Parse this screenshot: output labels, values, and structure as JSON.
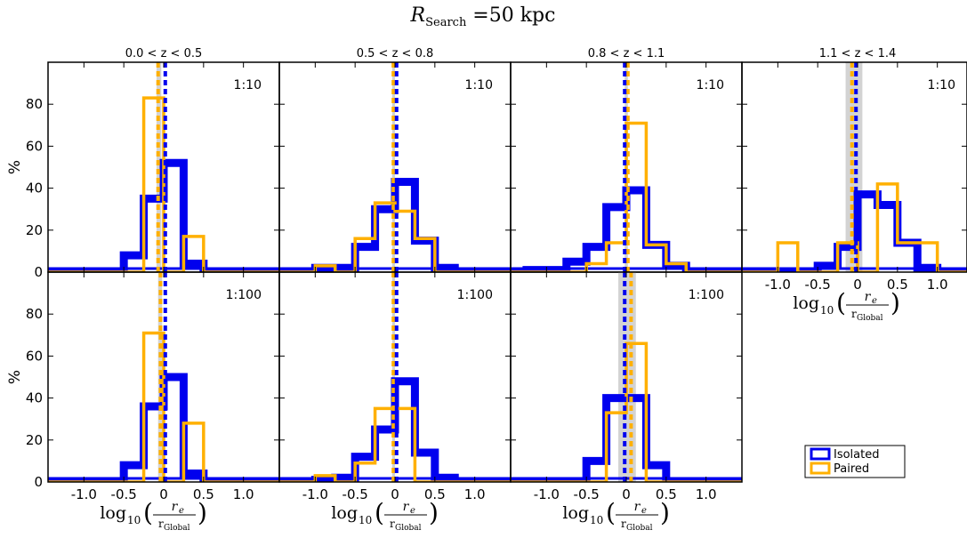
{
  "figure": {
    "title_main": "R",
    "title_sub": "Search",
    "title_rest": " =50 kpc",
    "xlabel_log": "log",
    "xlabel_base": "10",
    "xlabel_num": "r",
    "xlabel_num_sub": "e",
    "xlabel_den": "r",
    "xlabel_den_sub": "Global",
    "ylabel": "%"
  },
  "legend": {
    "items": [
      {
        "label": "Isolated",
        "color": "#0000ee"
      },
      {
        "label": "Paired",
        "color": "#ffb000"
      }
    ],
    "placement": "bottom-right"
  },
  "colors": {
    "isolated": "#0000ee",
    "paired": "#ffb000",
    "band": "#d3d3d3"
  },
  "chart_data": {
    "type": "histogram-grid",
    "bin_edges": [
      -1.75,
      -1.5,
      -1.25,
      -1.0,
      -0.75,
      -0.5,
      -0.25,
      0.0,
      0.25,
      0.5,
      0.75,
      1.0,
      1.25,
      1.5,
      1.75
    ],
    "xlim": [
      -1.45,
      1.45
    ],
    "ylim": [
      0,
      100
    ],
    "xticks": [
      -1.0,
      -0.5,
      0,
      0.5,
      1.0
    ],
    "xtick_labels": [
      "-1.0",
      "-0.5",
      "0",
      "0.5",
      "1.0"
    ],
    "yticks": [
      0,
      20,
      40,
      60,
      80
    ],
    "ytick_labels": [
      "0",
      "20",
      "40",
      "60",
      "80"
    ],
    "panels": [
      {
        "title": "0.0 < z < 0.5",
        "ratio": "1:10",
        "row": 0,
        "col": 0,
        "isolated": [
          0,
          0,
          0,
          0,
          0,
          8,
          35,
          52,
          4,
          0,
          0,
          0,
          0,
          0
        ],
        "paired": [
          0,
          0,
          0,
          0,
          0,
          0,
          83,
          0,
          17,
          0,
          0,
          0,
          0,
          0
        ],
        "isolated_line": 0.02,
        "paired_line": -0.07,
        "band": [
          -0.09,
          -0.03
        ]
      },
      {
        "title": "0.5 < z < 0.8",
        "ratio": "1:10",
        "row": 0,
        "col": 1,
        "isolated": [
          0,
          0,
          0,
          2,
          2,
          12,
          30,
          43,
          15,
          2,
          0,
          0,
          0,
          0
        ],
        "paired": [
          0,
          0,
          0,
          3,
          0,
          16,
          33,
          29,
          16,
          0,
          0,
          0,
          0,
          0
        ],
        "isolated_line": 0.02,
        "paired_line": -0.02,
        "band": [
          -0.035,
          0.0
        ]
      },
      {
        "title": "0.8 < z < 1.1",
        "ratio": "1:10",
        "row": 0,
        "col": 2,
        "isolated": [
          0,
          0,
          1,
          1,
          5,
          12,
          31,
          39,
          13,
          3,
          0,
          0,
          0,
          0
        ],
        "paired": [
          0,
          0,
          0,
          0,
          0,
          4,
          14,
          71,
          13,
          4,
          0,
          0,
          0,
          0
        ],
        "isolated_line": -0.02,
        "paired_line": 0.02,
        "band": [
          -0.02,
          0.02
        ]
      },
      {
        "title": "1.1 < z < 1.4",
        "ratio": "1:10",
        "row": 0,
        "col": 3,
        "isolated": [
          0,
          0,
          0,
          0,
          0,
          3,
          12,
          37,
          32,
          14,
          2,
          0,
          0,
          0
        ],
        "paired": [
          0,
          0,
          0,
          14,
          0,
          0,
          14,
          0,
          42,
          14,
          14,
          0,
          0,
          0
        ],
        "isolated_line": -0.02,
        "paired_line": -0.07,
        "band": [
          -0.15,
          0.06
        ]
      },
      {
        "title": "",
        "ratio": "1:100",
        "row": 1,
        "col": 0,
        "isolated": [
          0,
          0,
          0,
          0,
          0,
          8,
          36,
          50,
          4,
          0,
          0,
          0,
          0,
          0
        ],
        "paired": [
          0,
          0,
          0,
          0,
          0,
          0,
          71,
          0,
          28,
          0,
          0,
          0,
          0,
          0
        ],
        "isolated_line": 0.02,
        "paired_line": -0.04,
        "band": [
          -0.07,
          -0.02
        ]
      },
      {
        "title": "",
        "ratio": "1:100",
        "row": 1,
        "col": 1,
        "isolated": [
          0,
          0,
          0,
          1,
          2,
          12,
          25,
          48,
          14,
          2,
          0,
          0,
          0,
          0
        ],
        "paired": [
          0,
          0,
          0,
          3,
          0,
          9,
          35,
          35,
          0,
          0,
          0,
          0,
          0,
          0
        ],
        "isolated_line": 0.02,
        "paired_line": -0.02,
        "band": [
          -0.035,
          0.0
        ]
      },
      {
        "title": "",
        "ratio": "1:100",
        "row": 1,
        "col": 2,
        "isolated": [
          0,
          0,
          0,
          0,
          0,
          10,
          40,
          40,
          8,
          0,
          0,
          0,
          0,
          0
        ],
        "paired": [
          0,
          0,
          0,
          0,
          0,
          0,
          33,
          66,
          0,
          0,
          0,
          0,
          0,
          0
        ],
        "isolated_line": -0.02,
        "paired_line": 0.06,
        "band": [
          -0.1,
          0.12
        ]
      }
    ]
  }
}
